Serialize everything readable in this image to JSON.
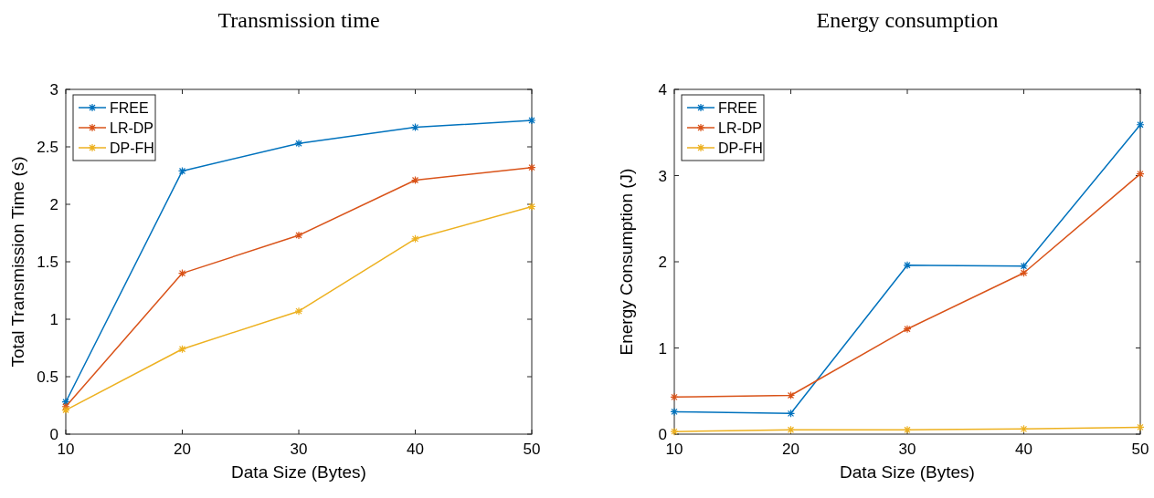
{
  "chart_data": [
    {
      "type": "line",
      "title": "Transmission time",
      "xlabel": "Data Size (Bytes)",
      "ylabel": "Total Transmission Time (s)",
      "x": [
        10,
        20,
        30,
        40,
        50
      ],
      "xlim": [
        10,
        50
      ],
      "xticks": [
        10,
        20,
        30,
        40,
        50
      ],
      "ylim": [
        0,
        3
      ],
      "yticks": [
        0,
        0.5,
        1,
        1.5,
        2,
        2.5,
        3
      ],
      "legend": "top left",
      "grid": false,
      "marker": "cross",
      "series": [
        {
          "name": "FREE",
          "color": "#0072bd",
          "values": [
            0.28,
            2.29,
            2.53,
            2.67,
            2.73
          ]
        },
        {
          "name": "LR-DP",
          "color": "#d95319",
          "values": [
            0.24,
            1.4,
            1.73,
            2.21,
            2.32
          ]
        },
        {
          "name": "DP-FH",
          "color": "#edb120",
          "values": [
            0.21,
            0.74,
            1.07,
            1.7,
            1.98
          ]
        }
      ]
    },
    {
      "type": "line",
      "title": "Energy consumption",
      "xlabel": "Data Size (Bytes)",
      "ylabel": "Energy Consumption (J)",
      "x": [
        10,
        20,
        30,
        40,
        50
      ],
      "xlim": [
        10,
        50
      ],
      "xticks": [
        10,
        20,
        30,
        40,
        50
      ],
      "ylim": [
        0,
        4
      ],
      "yticks": [
        0,
        1,
        2,
        3,
        4
      ],
      "legend": "top left",
      "grid": false,
      "marker": "cross",
      "series": [
        {
          "name": "FREE",
          "color": "#0072bd",
          "values": [
            0.26,
            0.24,
            1.96,
            1.95,
            3.59
          ]
        },
        {
          "name": "LR-DP",
          "color": "#d95319",
          "values": [
            0.43,
            0.45,
            1.22,
            1.87,
            3.02
          ]
        },
        {
          "name": "DP-FH",
          "color": "#edb120",
          "values": [
            0.03,
            0.05,
            0.05,
            0.06,
            0.08
          ]
        }
      ]
    }
  ]
}
